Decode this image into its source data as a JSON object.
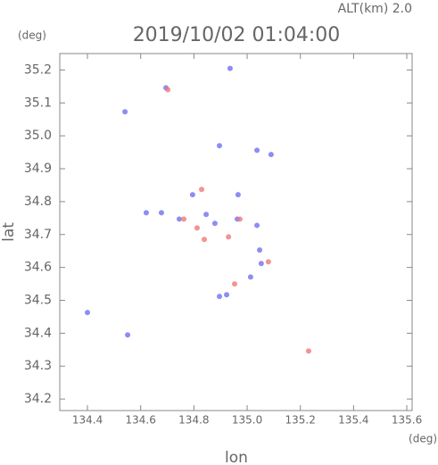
{
  "chart_data": {
    "type": "scatter",
    "title": "2019/10/02 01:04:00",
    "subtitle": "ALT(km) 2.0",
    "x_label": "lon",
    "y_label": "lat",
    "x_unit": "(deg)",
    "y_unit": "(deg)",
    "xlim": [
      134.296,
      135.62
    ],
    "ylim": [
      34.165,
      35.25
    ],
    "xticks": [
      134.4,
      134.6,
      134.8,
      {
        "value": 135,
        "label": "135.0"
      },
      135.2,
      135.4,
      135.6
    ],
    "yticks": [
      34.2,
      34.3,
      34.4,
      34.5,
      34.6,
      34.7,
      34.8,
      34.9,
      {
        "value": 35,
        "label": "35.0"
      },
      35.1,
      35.2
    ],
    "series": [
      {
        "color": "#7070f0",
        "x": [
          134.936,
          134.541,
          134.695,
          134.896,
          135.037,
          135.09,
          134.966,
          134.621,
          134.678,
          134.795,
          134.846,
          134.879,
          134.963,
          135.037,
          135.047,
          135.053,
          134.923,
          134.896,
          134.4,
          134.551,
          135.013,
          134.745
        ],
        "y": [
          35.205,
          35.073,
          35.146,
          34.97,
          34.956,
          34.943,
          34.821,
          34.766,
          34.766,
          34.821,
          34.761,
          34.734,
          34.747,
          34.728,
          34.653,
          34.612,
          34.517,
          34.512,
          34.463,
          34.395,
          34.571,
          34.747
        ]
      },
      {
        "color": "#f07878",
        "x": [
          134.702,
          134.829,
          134.762,
          134.812,
          134.93,
          134.973,
          134.953,
          135.231,
          135.08,
          134.839
        ],
        "y": [
          35.14,
          34.837,
          34.747,
          34.72,
          34.693,
          34.747,
          34.55,
          34.346,
          34.617,
          34.685
        ]
      }
    ]
  }
}
